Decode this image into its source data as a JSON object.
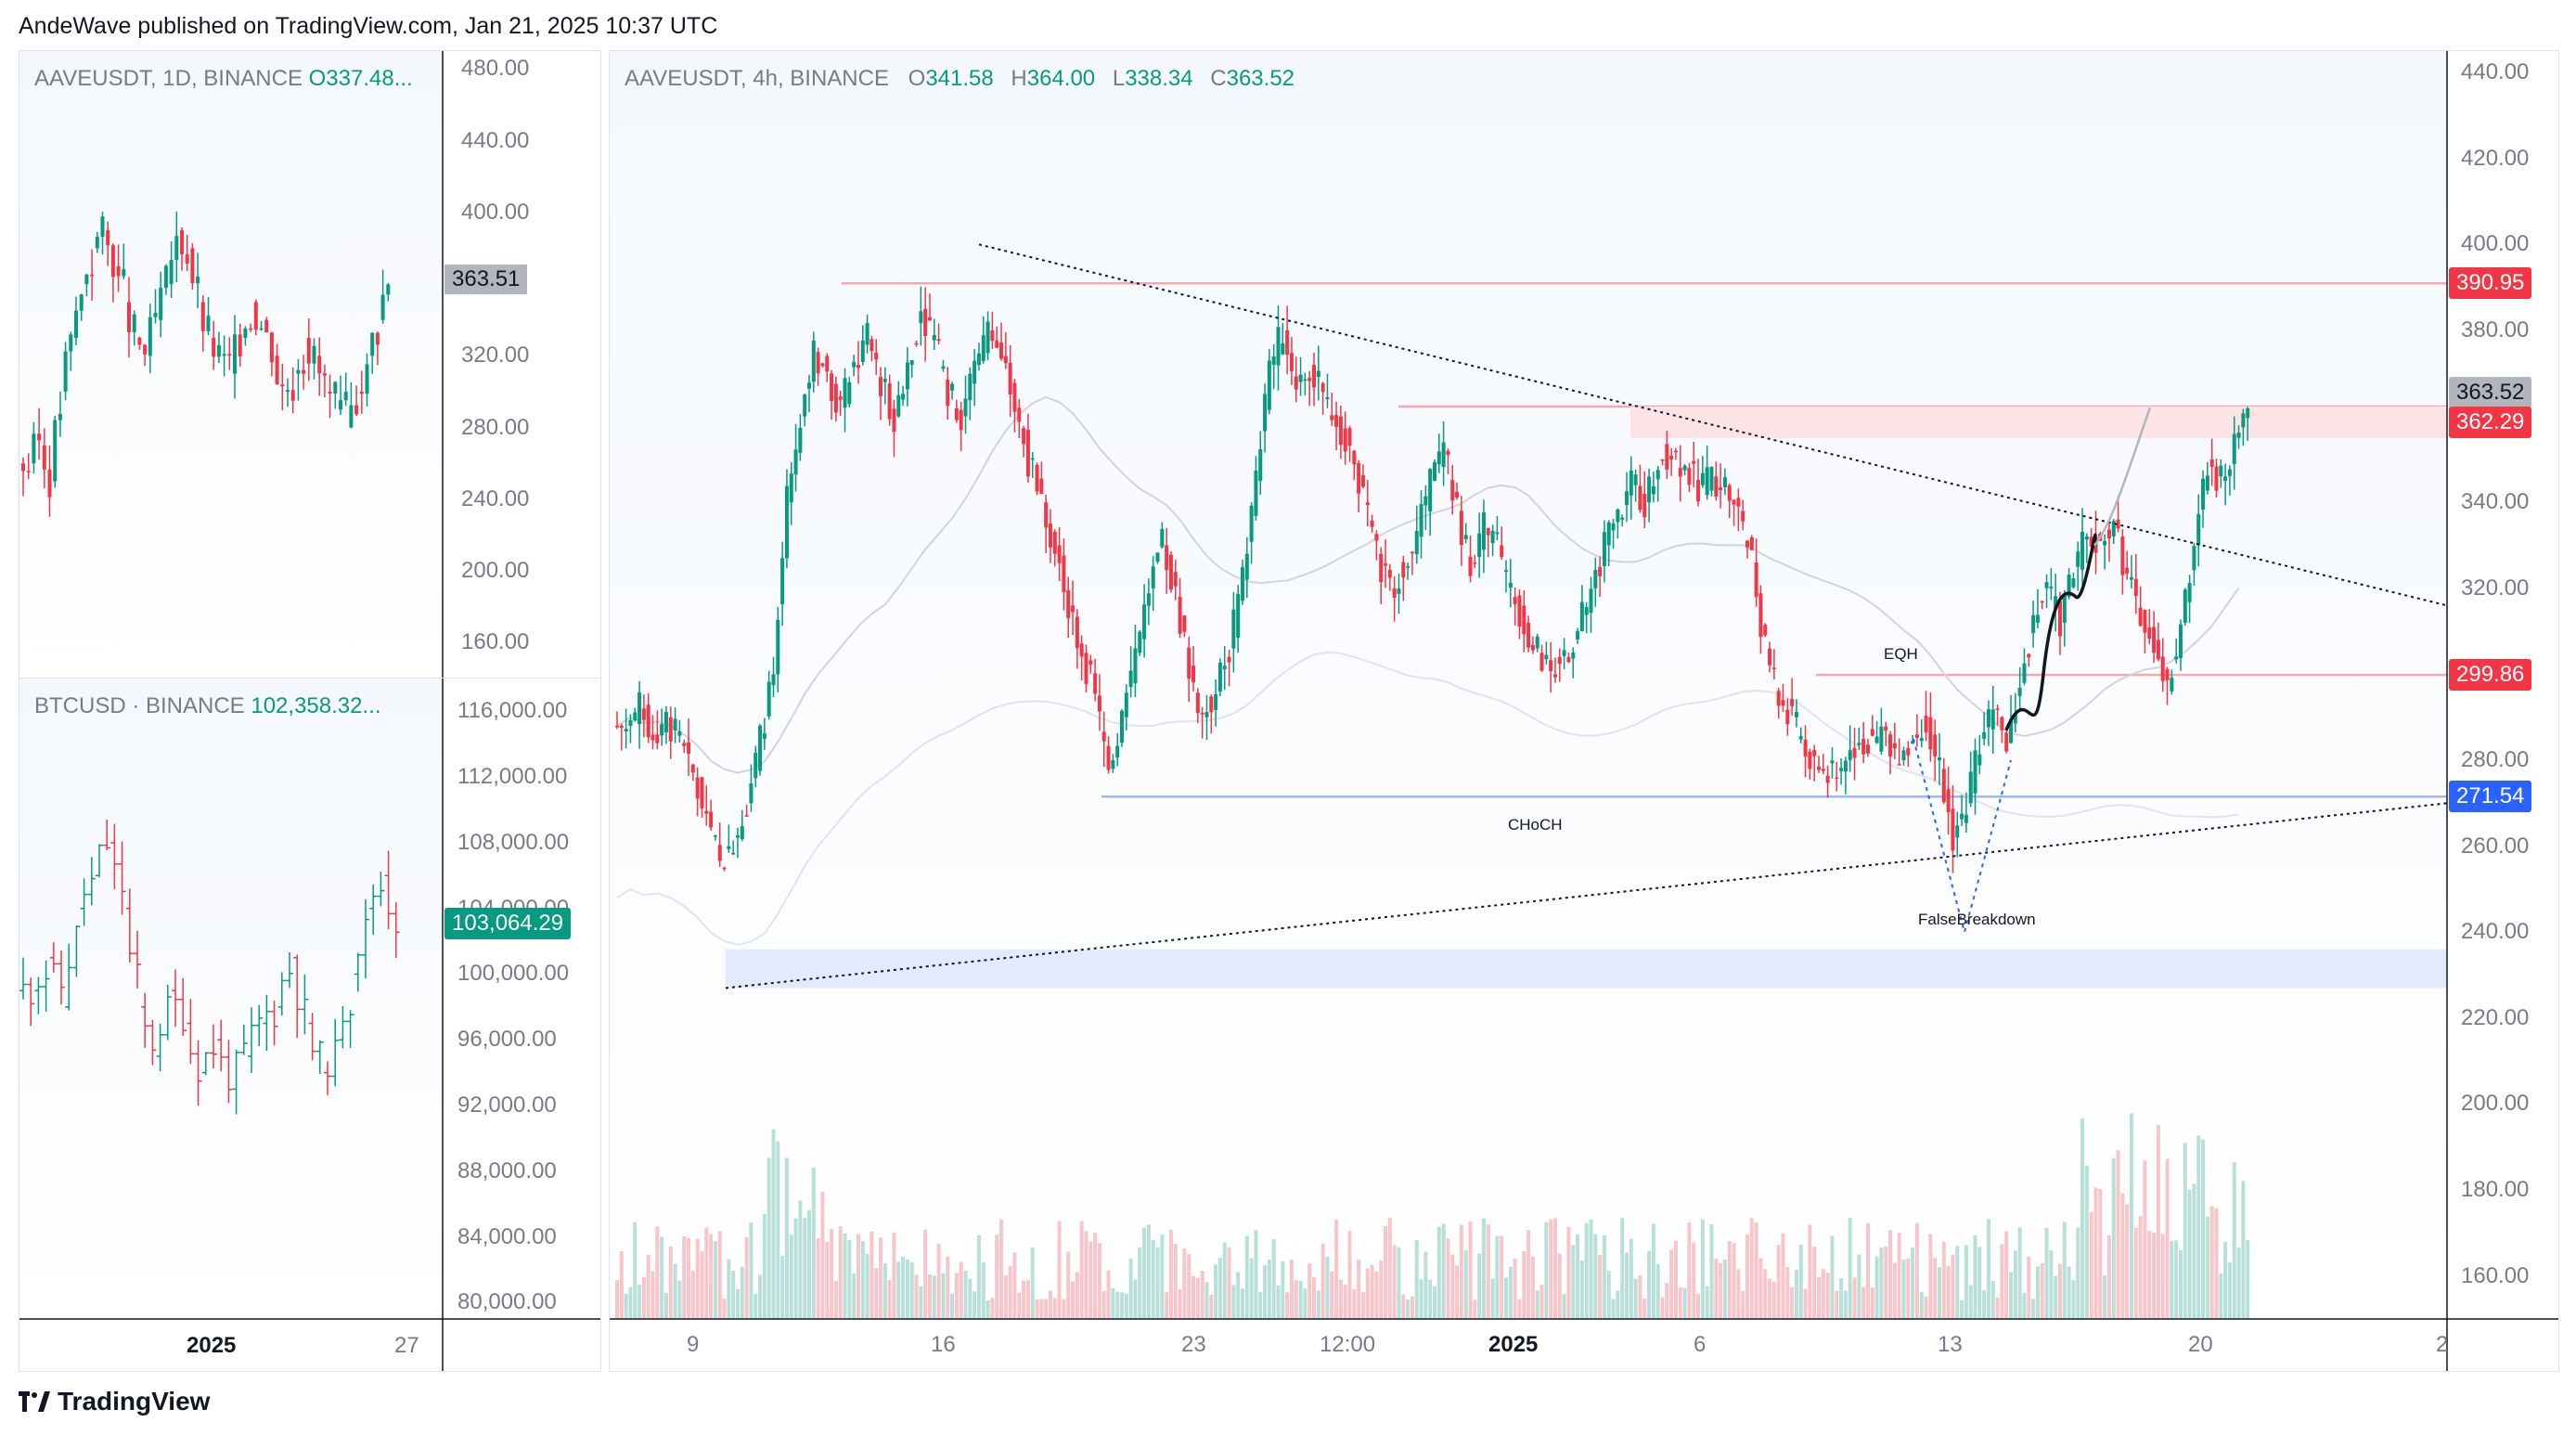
{
  "header": {
    "text": "AndeWave published on TradingView.com, Jan 21, 2025 10:37 UTC"
  },
  "footer": {
    "brand": "TradingView",
    "logo_icon": "tradingview-logo-icon"
  },
  "colors": {
    "up": "#089981",
    "down": "#f23645",
    "up_soft": "#a6d8cf",
    "down_soft": "#f6b7bd",
    "resistance": "#f23645",
    "support": "#2962ff",
    "grid": "#f0f3fa"
  },
  "panels": {
    "aave_daily": {
      "symbol": "AAVEUSDT, 1D, BINANCE",
      "ohlc_text": "O337.48...",
      "y_ticks": [
        "480.00",
        "440.00",
        "400.00",
        "363.51",
        "320.00",
        "280.00",
        "240.00",
        "200.00",
        "160.00"
      ],
      "last_price": "363.51"
    },
    "btc_daily": {
      "symbol": "BTCUSD · BINANCE",
      "price_text": "102,358.32...",
      "y_ticks": [
        "116,000.00",
        "112,000.00",
        "108,000.00",
        "104,000.00",
        "100,000.00",
        "96,000.00",
        "92,000.00",
        "88,000.00",
        "84,000.00",
        "80,000.00"
      ],
      "last_price": "103,064.29",
      "x_ticks": [
        "2025",
        "27"
      ]
    },
    "main": {
      "symbol": "AAVEUSDT, 4h, BINANCE",
      "o_label": "O",
      "o_value": "341.58",
      "h_label": "H",
      "h_value": "364.00",
      "l_label": "L",
      "l_value": "338.34",
      "c_label": "C",
      "c_value": "363.52",
      "y_ticks": [
        "440.00",
        "420.00",
        "400.00",
        "380.00",
        "340.00",
        "320.00",
        "280.00",
        "260.00",
        "240.00",
        "220.00",
        "200.00",
        "180.00",
        "160.00"
      ],
      "x_ticks": [
        "9",
        "16",
        "23",
        "12:00",
        "2025",
        "6",
        "13",
        "20",
        "2"
      ],
      "price_tags": [
        {
          "value": "390.95",
          "color": "#f23645"
        },
        {
          "value": "363.52",
          "color": "#b2b5be"
        },
        {
          "value": "362.29",
          "color": "#f23645"
        },
        {
          "value": "299.86",
          "color": "#f23645"
        },
        {
          "value": "271.54",
          "color": "#2962ff"
        }
      ],
      "annotations": [
        "EQH",
        "CHoCH",
        "FalseBreakdown"
      ]
    }
  },
  "chart_data": [
    {
      "type": "candlestick",
      "title": "AAVEUSDT, 4h, BINANCE",
      "x_ticks": [
        "9",
        "16",
        "23",
        "12:00",
        "2025",
        "6",
        "13",
        "20",
        "2"
      ],
      "ylim": [
        150,
        445
      ],
      "ohlc_last": {
        "open": 341.58,
        "high": 364.0,
        "low": 338.34,
        "close": 363.52
      },
      "levels": [
        {
          "price": 390.95,
          "kind": "resistance"
        },
        {
          "price": 362.29,
          "kind": "resistance"
        },
        {
          "price": 299.86,
          "kind": "resistance"
        },
        {
          "price": 271.54,
          "kind": "support"
        }
      ],
      "closes_path": [
        288,
        292,
        286,
        290,
        284,
        276,
        268,
        255,
        262,
        270,
        285,
        300,
        340,
        360,
        375,
        370,
        362,
        372,
        378,
        368,
        360,
        372,
        385,
        378,
        366,
        360,
        372,
        380,
        374,
        362,
        350,
        340,
        330,
        316,
        305,
        295,
        278,
        290,
        305,
        320,
        330,
        318,
        302,
        290,
        296,
        306,
        322,
        345,
        372,
        380,
        368,
        372,
        364,
        360,
        352,
        340,
        328,
        320,
        325,
        332,
        345,
        352,
        338,
        326,
        334,
        330,
        318,
        312,
        305,
        300,
        304,
        310,
        320,
        330,
        336,
        344,
        340,
        350,
        352,
        348,
        344,
        346,
        344,
        338,
        326,
        306,
        294,
        290,
        282,
        278,
        276,
        280,
        285,
        284,
        286,
        280,
        286,
        290,
        278,
        262,
        270,
        285,
        292,
        284,
        298,
        312,
        320,
        312,
        325,
        332,
        330,
        336,
        322,
        315,
        308,
        296,
        312,
        330,
        350,
        345,
        355,
        363
      ]
    },
    {
      "type": "candlestick",
      "title": "AAVEUSDT, 1D, BINANCE",
      "ylim": [
        140,
        490
      ],
      "last": 363.51
    },
    {
      "type": "candlestick",
      "title": "BTCUSD · BINANCE",
      "ylim": [
        79000,
        118000
      ],
      "last": 103064.29
    }
  ]
}
